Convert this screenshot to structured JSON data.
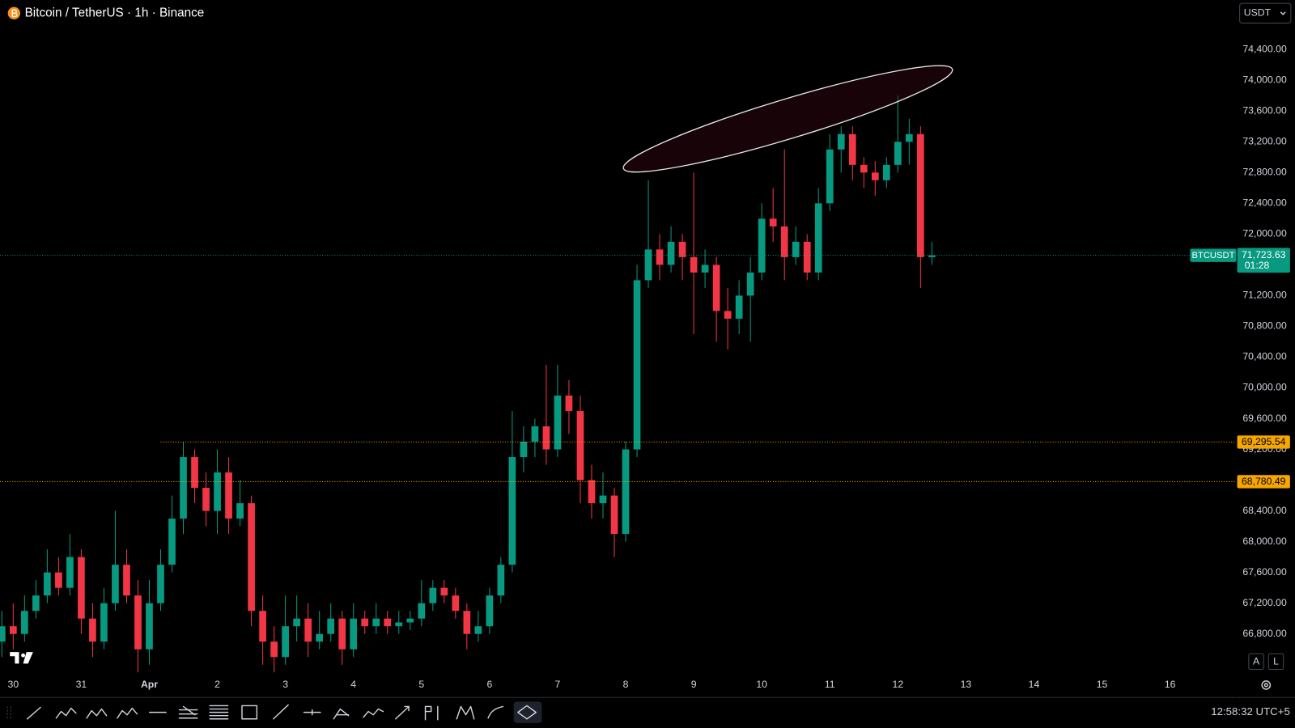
{
  "chart_data": {
    "type": "candlestick",
    "title": "Bitcoin / TetherUS · 1h · Binance",
    "currency": "USDT",
    "x": [
      -4,
      0,
      4,
      8,
      12,
      16,
      20,
      24,
      28,
      32,
      36,
      40,
      44,
      48,
      52,
      56,
      60,
      64,
      68,
      72,
      76,
      80,
      84,
      88,
      92,
      96,
      100,
      104,
      108,
      112,
      116,
      120,
      124,
      128,
      132,
      136,
      140,
      144,
      148,
      152,
      156,
      160,
      164,
      168,
      172,
      176,
      180,
      184,
      188,
      192,
      196,
      200,
      204,
      208,
      212,
      216,
      220,
      224,
      228,
      232,
      236,
      240,
      244,
      248,
      252,
      256,
      260,
      264,
      268,
      272,
      276,
      280,
      284,
      288,
      292,
      296,
      300,
      304,
      308,
      312,
      316,
      320,
      324
    ],
    "open": [
      66700,
      66900,
      66800,
      67100,
      67300,
      67600,
      67400,
      67800,
      67000,
      66700,
      67200,
      67700,
      67300,
      66600,
      67200,
      67700,
      68300,
      69100,
      68700,
      68400,
      68900,
      68300,
      68500,
      67100,
      66700,
      66500,
      66900,
      67000,
      66700,
      66800,
      67000,
      66600,
      67000,
      66900,
      67000,
      66900,
      66950,
      67000,
      67200,
      67400,
      67300,
      67100,
      66800,
      66900,
      67300,
      67700,
      69100,
      69300,
      69500,
      69200,
      69900,
      69700,
      68800,
      68500,
      68600,
      68100,
      69200,
      71400,
      71800,
      71600,
      71900,
      71700,
      71500,
      71600,
      71000,
      70900,
      71200,
      71500,
      72200,
      72100,
      71700,
      71900,
      71500,
      72400,
      73100,
      73300,
      72900,
      72800,
      72700,
      72900,
      73200,
      73300,
      71700
    ],
    "high": [
      67100,
      67200,
      67300,
      67500,
      67900,
      67800,
      68100,
      67900,
      67200,
      67400,
      68400,
      67900,
      67500,
      67500,
      67900,
      68600,
      69300,
      69200,
      68900,
      69200,
      69100,
      68800,
      68600,
      67300,
      66900,
      67300,
      67300,
      67200,
      67100,
      67200,
      67100,
      67200,
      67100,
      67200,
      67100,
      67100,
      67100,
      67500,
      67500,
      67500,
      67400,
      67200,
      67100,
      67400,
      67800,
      69700,
      69500,
      69600,
      70300,
      70300,
      70100,
      69900,
      69000,
      68900,
      68700,
      69300,
      71600,
      72700,
      72000,
      72100,
      72000,
      72800,
      71800,
      71700,
      71300,
      71400,
      71700,
      72400,
      72600,
      73100,
      72100,
      72000,
      72600,
      73300,
      73400,
      73400,
      73000,
      72950,
      73000,
      73800,
      73500,
      73400,
      71900
    ],
    "low": [
      66500,
      66600,
      66700,
      67000,
      67200,
      67300,
      67300,
      66800,
      66500,
      66600,
      67100,
      67200,
      66300,
      66400,
      67100,
      67600,
      68100,
      68500,
      68200,
      68100,
      68100,
      68200,
      66900,
      66400,
      66300,
      66400,
      66700,
      66500,
      66600,
      66700,
      66400,
      66500,
      66800,
      66800,
      66800,
      66800,
      66850,
      66900,
      67100,
      67200,
      67000,
      66600,
      66700,
      66800,
      67200,
      67600,
      68900,
      69100,
      69000,
      69100,
      69400,
      68500,
      68300,
      68300,
      67800,
      68000,
      69100,
      71300,
      71400,
      71500,
      71400,
      70700,
      71300,
      70600,
      70500,
      70700,
      70600,
      71400,
      71900,
      71400,
      71600,
      71400,
      71400,
      72300,
      72800,
      72700,
      72600,
      72500,
      72600,
      72800,
      72900,
      71300,
      71600
    ],
    "close": [
      66900,
      66800,
      67100,
      67300,
      67600,
      67400,
      67800,
      67000,
      66700,
      67200,
      67700,
      67300,
      66600,
      67200,
      67700,
      68300,
      69100,
      68700,
      68400,
      68900,
      68300,
      68500,
      67100,
      66700,
      66500,
      66900,
      67000,
      66700,
      66800,
      67000,
      66600,
      67000,
      66900,
      67000,
      66900,
      66950,
      67000,
      67200,
      67400,
      67300,
      67100,
      66800,
      66900,
      67300,
      67700,
      69100,
      69300,
      69500,
      69200,
      69900,
      69700,
      68800,
      68500,
      68600,
      68100,
      69200,
      71400,
      71800,
      71600,
      71900,
      71700,
      71500,
      71600,
      71000,
      70900,
      71200,
      71500,
      72200,
      72100,
      71700,
      71900,
      71500,
      72400,
      73100,
      73300,
      72900,
      72800,
      72700,
      72900,
      73200,
      73300,
      71700,
      71723.63
    ],
    "up_color": "#089981",
    "down_color": "#f23645",
    "xlim": [
      -4.66,
      430.8
    ],
    "xticks": [
      {
        "value": 0,
        "label": "30"
      },
      {
        "value": 24,
        "label": "31"
      },
      {
        "value": 48,
        "label": "Apr"
      },
      {
        "value": 72,
        "label": "2"
      },
      {
        "value": 96,
        "label": "3"
      },
      {
        "value": 120,
        "label": "4"
      },
      {
        "value": 144,
        "label": "5"
      },
      {
        "value": 168,
        "label": "6"
      },
      {
        "value": 192,
        "label": "7"
      },
      {
        "value": 216,
        "label": "8"
      },
      {
        "value": 240,
        "label": "9"
      },
      {
        "value": 264,
        "label": "10"
      },
      {
        "value": 288,
        "label": "11"
      },
      {
        "value": 312,
        "label": "12"
      },
      {
        "value": 336,
        "label": "13"
      },
      {
        "value": 360,
        "label": "14"
      },
      {
        "value": 384,
        "label": "15"
      },
      {
        "value": 408,
        "label": "16"
      }
    ],
    "ylim": [
      66296,
      75044
    ],
    "yticks": [
      {
        "value": 66800,
        "label": "66,800.00"
      },
      {
        "value": 67200,
        "label": "67,200.00"
      },
      {
        "value": 67600,
        "label": "67,600.00"
      },
      {
        "value": 68000,
        "label": "68,000.00"
      },
      {
        "value": 68400,
        "label": "68,400.00"
      },
      {
        "value": 68800,
        "label": "68,800.00"
      },
      {
        "value": 69200,
        "label": "69,200.00"
      },
      {
        "value": 69600,
        "label": "69,600.00"
      },
      {
        "value": 70000,
        "label": "70,000.00"
      },
      {
        "value": 70400,
        "label": "70,400.00"
      },
      {
        "value": 70800,
        "label": "70,800.00"
      },
      {
        "value": 71200,
        "label": "71,200.00"
      },
      {
        "value": 71600,
        "label": "71,600.00"
      },
      {
        "value": 72000,
        "label": "72,000.00"
      },
      {
        "value": 72400,
        "label": "72,400.00"
      },
      {
        "value": 72800,
        "label": "72,800.00"
      },
      {
        "value": 73200,
        "label": "73,200.00"
      },
      {
        "value": 73600,
        "label": "73,600.00"
      },
      {
        "value": 74000,
        "label": "74,000.00"
      },
      {
        "value": 74400,
        "label": "74,400.00"
      }
    ],
    "grid": false,
    "price_lines": [
      {
        "value": 69295.54,
        "label": "69,295.54",
        "color": "#f7a600",
        "from_x": 52
      },
      {
        "value": 68780.49,
        "label": "68,780.49",
        "color": "#f7a600"
      }
    ],
    "last_price": {
      "symbol": "BTCUSDT",
      "value": 71723.63,
      "label": "71,723.63",
      "countdown": "01:28",
      "color": "#089981"
    },
    "scale_buttons": [
      "A",
      "L"
    ],
    "clock": "12:58:32 UTC+5"
  }
}
